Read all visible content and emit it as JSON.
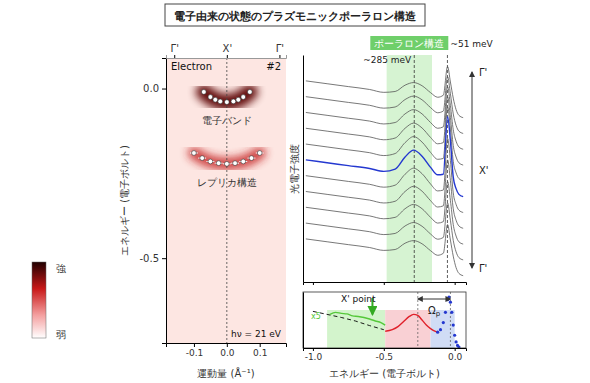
{
  "title": "電子由来の状態のプラズモニックポーラロン構造",
  "chart_data": [
    {
      "type": "scatter",
      "panel_label": "Electron",
      "panel_number": "#2",
      "photon_energy": "hν = 21 eV",
      "x_label": "運動量 (Å⁻¹)",
      "y_label": "エネルギー (電子ボルト)",
      "xlim": [
        -0.185,
        0.18
      ],
      "xticks": [
        -0.1,
        {
          "value": 0,
          "label": "0.0"
        },
        0.1
      ],
      "ylim": [
        -0.75,
        0.09
      ],
      "yticks": [
        {
          "value": 0,
          "label": "0.0"
        },
        -0.5
      ],
      "top_ticks": [
        {
          "value": -0.16,
          "label": "Γ'"
        },
        {
          "value": 0,
          "label": "X'"
        },
        {
          "value": 0.16,
          "label": "Γ'"
        }
      ],
      "colorbar": {
        "high": "強",
        "low": "弱"
      },
      "series": [
        {
          "label": "電子バンド",
          "color": "#ffffff",
          "x": [
            -0.07,
            -0.05,
            -0.035,
            -0.02,
            0,
            0.02,
            0.035,
            0.05,
            0.07
          ],
          "values": [
            -0.01,
            -0.025,
            -0.033,
            -0.038,
            -0.04,
            -0.038,
            -0.033,
            -0.025,
            -0.01
          ]
        },
        {
          "label": "レプリカ構造",
          "color": "#ffffff",
          "x": [
            -0.1,
            -0.075,
            -0.05,
            -0.025,
            0,
            0.025,
            0.05,
            0.075,
            0.1
          ],
          "values": [
            -0.19,
            -0.205,
            -0.215,
            -0.22,
            -0.222,
            -0.22,
            -0.215,
            -0.205,
            -0.19
          ],
          "xerr": [
            0.012,
            0.012,
            0.012,
            0.012,
            0.012,
            0.012,
            0.012,
            0.012,
            0.012
          ]
        }
      ]
    },
    {
      "type": "line",
      "y_label": "光電子強度",
      "xlim": [
        -1.07,
        0.08
      ],
      "xticks": [
        -1,
        -0.5,
        0
      ],
      "ylim": [
        0.3,
        8.2
      ],
      "tick_labels": false,
      "x": [
        -1.05,
        -0.9,
        -0.75,
        -0.6,
        -0.5,
        -0.42,
        -0.35,
        -0.29,
        -0.23,
        -0.17,
        -0.12,
        -0.08,
        -0.05,
        -0.03,
        -0.01,
        0.01,
        0.03,
        0.06
      ],
      "band": {
        "label": "ポーラロン構造",
        "from": -0.48,
        "to": -0.16
      },
      "markers": [
        {
          "value": -0.285,
          "label": "~285 meV"
        },
        {
          "value": -0.051,
          "label": "~51 meV"
        }
      ],
      "side_labels": [
        "Γ'",
        "X'",
        "Γ'"
      ],
      "series": [
        {
          "color": "#555555",
          "values": [
            7.3,
            7.2,
            7.1,
            7.0,
            6.9,
            6.93,
            7.15,
            7.24,
            7.13,
            6.89,
            6.73,
            6.8,
            7.8,
            7.26,
            6.7,
            6.3,
            6.1,
            6.02
          ]
        },
        {
          "color": "#555555",
          "values": [
            6.75,
            6.65,
            6.55,
            6.45,
            6.35,
            6.39,
            6.65,
            6.77,
            6.64,
            6.37,
            6.19,
            6.25,
            7.45,
            6.85,
            6.15,
            5.75,
            5.55,
            5.47
          ]
        },
        {
          "color": "#555555",
          "values": [
            6.2,
            6.1,
            6.0,
            5.9,
            5.8,
            5.85,
            6.15,
            6.3,
            6.15,
            5.85,
            5.65,
            5.7,
            7.1,
            6.44,
            5.6,
            5.2,
            5.0,
            4.92
          ]
        },
        {
          "color": "#555555",
          "values": [
            5.65,
            5.55,
            5.45,
            5.35,
            5.25,
            5.31,
            5.65,
            5.83,
            5.66,
            5.33,
            5.11,
            5.15,
            6.75,
            6.03,
            5.05,
            4.65,
            4.45,
            4.37
          ]
        },
        {
          "color": "#555555",
          "values": [
            5.1,
            5.0,
            4.9,
            4.8,
            4.7,
            4.77,
            5.15,
            5.36,
            5.17,
            4.81,
            4.57,
            4.6,
            6.4,
            5.62,
            4.5,
            4.1,
            3.9,
            3.82
          ]
        },
        {
          "color": "#2438d0",
          "values": [
            4.55,
            4.45,
            4.35,
            4.25,
            4.15,
            4.23,
            4.65,
            4.89,
            4.68,
            4.29,
            4.03,
            4.05,
            6.05,
            5.21,
            3.95,
            3.55,
            3.35,
            3.27
          ]
        },
        {
          "color": "#555555",
          "values": [
            4.0,
            3.9,
            3.8,
            3.7,
            3.6,
            3.67,
            4.05,
            4.26,
            4.07,
            3.71,
            3.47,
            3.5,
            5.3,
            4.52,
            3.4,
            3.0,
            2.8,
            2.72
          ]
        },
        {
          "color": "#555555",
          "values": [
            3.45,
            3.35,
            3.25,
            3.15,
            3.05,
            3.11,
            3.45,
            3.63,
            3.46,
            3.13,
            2.91,
            2.95,
            4.55,
            3.83,
            2.85,
            2.45,
            2.25,
            2.17
          ]
        },
        {
          "color": "#555555",
          "values": [
            2.9,
            2.8,
            2.7,
            2.6,
            2.5,
            2.55,
            2.85,
            3.0,
            2.85,
            2.55,
            2.35,
            2.4,
            3.8,
            3.14,
            2.3,
            1.9,
            1.7,
            1.62
          ]
        },
        {
          "color": "#555555",
          "values": [
            2.35,
            2.25,
            2.15,
            2.05,
            1.95,
            1.99,
            2.25,
            2.37,
            2.24,
            1.97,
            1.79,
            1.85,
            3.05,
            2.45,
            1.75,
            1.35,
            1.15,
            1.07
          ]
        },
        {
          "color": "#555555",
          "values": [
            1.8,
            1.7,
            1.6,
            1.5,
            1.4,
            1.43,
            1.65,
            1.74,
            1.63,
            1.39,
            1.23,
            1.3,
            2.3,
            1.76,
            1.2,
            0.8,
            0.6,
            0.52
          ]
        }
      ]
    },
    {
      "type": "line",
      "title": "X' point",
      "x_label": "エネルギー (電子ボルト)",
      "xlim": [
        -1.07,
        0.08
      ],
      "xticks": [
        {
          "value": -1,
          "label": "-1.0"
        },
        -0.5,
        {
          "value": 0,
          "label": "0.0"
        }
      ],
      "ylim": [
        0,
        1.1
      ],
      "tick_labels": "x",
      "regions": {
        "from": [
          -0.9,
          -0.49,
          -0.17
        ],
        "to": [
          -0.49,
          -0.17,
          0.0
        ],
        "colors": [
          "#d3f4cc",
          "#f9d0d4",
          "#d0dcf5"
        ]
      },
      "arrow": {
        "value": -0.58,
        "color": "#33aa22"
      },
      "scale_label": "x5",
      "omega": {
        "from": -0.26,
        "to": -0.03,
        "label": "Ωp"
      },
      "series": [
        {
          "color": "#000000",
          "line_style": "dashed",
          "x": [
            -1.0,
            -0.9,
            -0.8,
            -0.7,
            -0.6,
            -0.5
          ],
          "values": [
            0.72,
            0.66,
            0.6,
            0.53,
            0.44,
            0.36
          ]
        },
        {
          "color": "#55c83a",
          "x": [
            -0.88,
            -0.84,
            -0.8,
            -0.76,
            -0.72,
            -0.68,
            -0.64,
            -0.6,
            -0.56,
            -0.52,
            -0.49
          ],
          "values": [
            0.66,
            0.7,
            0.68,
            0.67,
            0.63,
            0.62,
            0.6,
            0.57,
            0.53,
            0.5,
            0.45
          ]
        },
        {
          "color": "#e0202a",
          "x": [
            -0.49,
            -0.44,
            -0.4,
            -0.36,
            -0.32,
            -0.29,
            -0.26,
            -0.23,
            -0.2,
            -0.17,
            -0.14,
            -0.12
          ],
          "values": [
            0.33,
            0.36,
            0.42,
            0.52,
            0.62,
            0.66,
            0.64,
            0.55,
            0.45,
            0.38,
            0.33,
            0.31
          ]
        },
        {
          "color": "#2438d0",
          "marker": "circle",
          "x": [
            -0.12,
            -0.1,
            -0.08,
            -0.065,
            -0.05,
            -0.04,
            -0.03,
            -0.02,
            -0.01,
            0.0,
            0.01,
            0.02,
            0.03
          ],
          "values": [
            0.31,
            0.36,
            0.5,
            0.7,
            0.95,
            1.0,
            0.9,
            0.7,
            0.45,
            0.25,
            0.12,
            0.05,
            0.02
          ]
        }
      ]
    }
  ]
}
